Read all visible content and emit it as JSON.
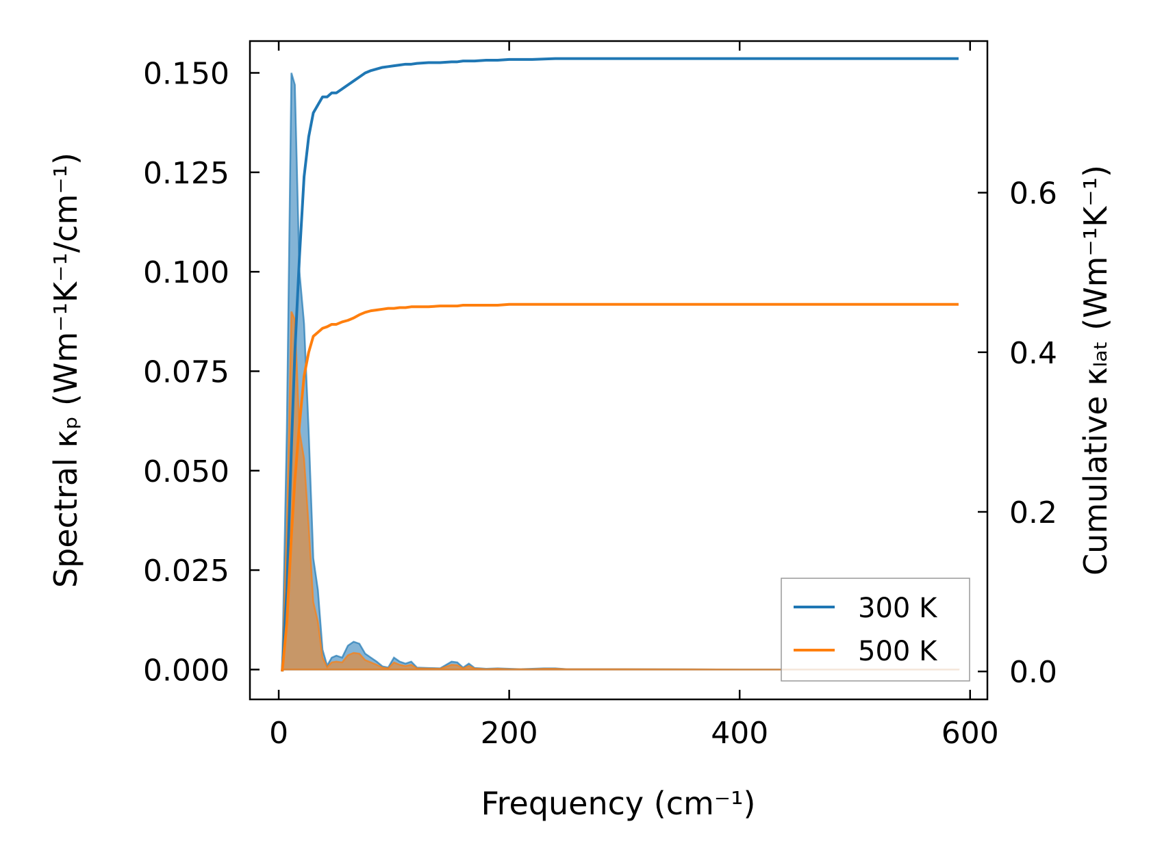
{
  "chart_data": {
    "type": "line",
    "xlabel": "Frequency (cm⁻¹)",
    "ylabel_left": "Spectral κₚ (Wm⁻¹K⁻¹/cm⁻¹)",
    "ylabel_right": "Cumulative κₗₐₜ (Wm⁻¹K⁻¹)",
    "xlim": [
      -25,
      615
    ],
    "ylim_left": [
      -0.0075,
      0.158
    ],
    "ylim_right": [
      -0.035,
      0.79
    ],
    "x_ticks": [
      0,
      200,
      400,
      600
    ],
    "x_tick_labels": [
      "0",
      "200",
      "400",
      "600"
    ],
    "y_left_ticks": [
      0.0,
      0.025,
      0.05,
      0.075,
      0.1,
      0.125,
      0.15
    ],
    "y_left_tick_labels": [
      "0.000",
      "0.025",
      "0.050",
      "0.075",
      "0.100",
      "0.125",
      "0.150"
    ],
    "y_right_ticks": [
      0.0,
      0.2,
      0.4,
      0.6
    ],
    "y_right_tick_labels": [
      "0.0",
      "0.2",
      "0.4",
      "0.6"
    ],
    "legend_position": "lower-right",
    "series": [
      {
        "name": "300 K",
        "color": "#1f77b4",
        "spectral": {
          "x": [
            3,
            7,
            11,
            14,
            18,
            22,
            26,
            30,
            34,
            38,
            42,
            46,
            50,
            55,
            60,
            65,
            70,
            75,
            80,
            85,
            90,
            95,
            100,
            105,
            110,
            115,
            120,
            130,
            140,
            150,
            155,
            160,
            165,
            170,
            175,
            180,
            190,
            200,
            210,
            220,
            230,
            240,
            250,
            300,
            400,
            500,
            590
          ],
          "y": [
            0.0,
            0.06,
            0.15,
            0.147,
            0.1,
            0.087,
            0.06,
            0.028,
            0.02,
            0.005,
            0.001,
            0.003,
            0.0035,
            0.003,
            0.006,
            0.007,
            0.0065,
            0.004,
            0.003,
            0.002,
            0.0008,
            0.0005,
            0.003,
            0.002,
            0.0015,
            0.002,
            0.0005,
            0.0004,
            0.0003,
            0.002,
            0.0018,
            0.0005,
            0.0015,
            0.0004,
            0.0003,
            0.0002,
            0.0003,
            0.0002,
            0.0001,
            0.0002,
            0.0003,
            0.0003,
            0.0001,
            0.0001,
            0.0,
            0.0,
            0.0
          ]
        },
        "cumulative": {
          "x": [
            3,
            7,
            11,
            14,
            18,
            22,
            26,
            30,
            34,
            38,
            42,
            46,
            50,
            55,
            60,
            65,
            70,
            75,
            80,
            85,
            90,
            95,
            100,
            105,
            110,
            115,
            120,
            130,
            140,
            150,
            155,
            160,
            170,
            180,
            190,
            200,
            220,
            240,
            250,
            300,
            400,
            500,
            590
          ],
          "y": [
            0.0,
            0.1,
            0.28,
            0.4,
            0.52,
            0.62,
            0.67,
            0.7,
            0.71,
            0.72,
            0.72,
            0.725,
            0.725,
            0.73,
            0.735,
            0.74,
            0.745,
            0.75,
            0.753,
            0.755,
            0.757,
            0.758,
            0.759,
            0.76,
            0.761,
            0.761,
            0.762,
            0.763,
            0.763,
            0.764,
            0.764,
            0.765,
            0.765,
            0.766,
            0.766,
            0.767,
            0.767,
            0.768,
            0.768,
            0.768,
            0.768,
            0.768,
            0.768
          ]
        }
      },
      {
        "name": "500 K",
        "color": "#ff7f0e",
        "spectral": {
          "x": [
            3,
            7,
            11,
            14,
            18,
            22,
            26,
            30,
            34,
            38,
            42,
            46,
            50,
            55,
            60,
            65,
            70,
            75,
            80,
            85,
            90,
            95,
            100,
            105,
            110,
            115,
            120,
            130,
            140,
            150,
            155,
            160,
            165,
            170,
            175,
            180,
            190,
            200,
            210,
            220,
            230,
            240,
            250,
            300,
            400,
            500,
            590
          ],
          "y": [
            0.0,
            0.035,
            0.09,
            0.088,
            0.06,
            0.053,
            0.036,
            0.017,
            0.012,
            0.003,
            0.0006,
            0.0018,
            0.002,
            0.0018,
            0.0036,
            0.0042,
            0.004,
            0.0024,
            0.0018,
            0.0012,
            0.0005,
            0.0003,
            0.0018,
            0.0012,
            0.0009,
            0.0012,
            0.0003,
            0.00025,
            0.0002,
            0.0012,
            0.0011,
            0.0003,
            0.0009,
            0.00025,
            0.0002,
            0.0001,
            0.0002,
            0.0001,
            0.0001,
            0.0001,
            0.0002,
            0.0002,
            0.0001,
            0.0001,
            0.0,
            0.0,
            0.0
          ]
        },
        "cumulative": {
          "x": [
            3,
            7,
            11,
            14,
            18,
            22,
            26,
            30,
            34,
            38,
            42,
            46,
            50,
            55,
            60,
            65,
            70,
            75,
            80,
            85,
            90,
            95,
            100,
            105,
            110,
            115,
            120,
            130,
            140,
            150,
            155,
            160,
            170,
            180,
            190,
            200,
            220,
            240,
            250,
            300,
            400,
            500,
            590
          ],
          "y": [
            0.0,
            0.06,
            0.17,
            0.24,
            0.31,
            0.37,
            0.4,
            0.42,
            0.425,
            0.43,
            0.432,
            0.435,
            0.435,
            0.438,
            0.44,
            0.443,
            0.447,
            0.45,
            0.452,
            0.453,
            0.454,
            0.455,
            0.455,
            0.456,
            0.456,
            0.457,
            0.457,
            0.457,
            0.458,
            0.458,
            0.458,
            0.459,
            0.459,
            0.459,
            0.459,
            0.46,
            0.46,
            0.46,
            0.46,
            0.46,
            0.46,
            0.46,
            0.46
          ]
        }
      }
    ]
  }
}
